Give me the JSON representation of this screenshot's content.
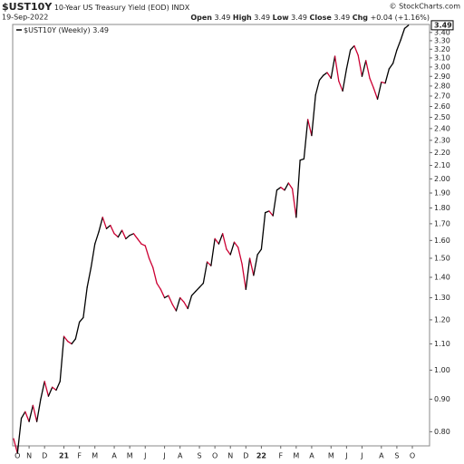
{
  "header": {
    "symbol": "$UST10Y",
    "description": "10-Year US Treasury Yield (EOD)",
    "exchange": "INDX",
    "date": "19-Sep-2022",
    "copyright": "© StockCharts.com",
    "quote": {
      "open_label": "Open",
      "open": 3.49,
      "high_label": "High",
      "high": 3.49,
      "low_label": "Low",
      "low": 3.49,
      "close_label": "Close",
      "close": 3.49,
      "change_label": "Chg",
      "change": "+0.04 (+1.16%)"
    }
  },
  "chart_data": {
    "type": "line",
    "log_scale": true,
    "up_color": "#000000",
    "down_color": "#cc0033",
    "categories": [
      null,
      "O",
      null,
      null,
      "N",
      null,
      null,
      null,
      "D",
      null,
      null,
      null,
      null,
      "21",
      null,
      null,
      null,
      "F",
      null,
      null,
      null,
      "M",
      null,
      null,
      null,
      null,
      "A",
      null,
      null,
      null,
      "M",
      null,
      null,
      null,
      "J",
      null,
      null,
      null,
      null,
      "J",
      null,
      null,
      null,
      "A",
      null,
      null,
      null,
      null,
      "S",
      null,
      null,
      null,
      "O",
      null,
      null,
      null,
      "N",
      null,
      null,
      null,
      "D",
      null,
      null,
      null,
      "22",
      null,
      null,
      null,
      null,
      "F",
      null,
      null,
      null,
      "M",
      null,
      null,
      null,
      "A",
      null,
      null,
      null,
      null,
      "M",
      null,
      null,
      null,
      "J",
      null,
      null,
      null,
      "J",
      null,
      null,
      null,
      null,
      "A",
      null,
      null,
      null,
      "S",
      null,
      null,
      null,
      "O"
    ],
    "series": [
      {
        "name": "$UST10Y (Weekly)",
        "color": "#000000",
        "values": [
          0.78,
          0.74,
          0.84,
          0.86,
          0.83,
          0.88,
          0.83,
          0.9,
          0.96,
          0.91,
          0.94,
          0.93,
          0.96,
          1.13,
          1.11,
          1.1,
          1.12,
          1.19,
          1.21,
          1.35,
          1.45,
          1.58,
          1.65,
          1.74,
          1.67,
          1.69,
          1.64,
          1.62,
          1.66,
          1.61,
          1.63,
          1.64,
          1.61,
          1.58,
          1.57,
          1.5,
          1.45,
          1.37,
          1.34,
          1.3,
          1.31,
          1.27,
          1.24,
          1.3,
          1.28,
          1.25,
          1.31,
          1.33,
          1.35,
          1.37,
          1.48,
          1.46,
          1.61,
          1.58,
          1.64,
          1.55,
          1.52,
          1.59,
          1.56,
          1.47,
          1.34,
          1.5,
          1.41,
          1.52,
          1.55,
          1.77,
          1.78,
          1.75,
          1.92,
          1.94,
          1.92,
          1.97,
          1.93,
          1.74,
          2.14,
          2.15,
          2.48,
          2.34,
          2.71,
          2.86,
          2.91,
          2.94,
          2.88,
          3.12,
          2.85,
          2.75,
          2.98,
          3.19,
          3.24,
          3.13,
          2.9,
          3.07,
          2.88,
          2.78,
          2.67,
          2.84,
          2.83,
          2.98,
          3.04,
          3.19,
          3.31,
          3.45,
          3.49,
          null
        ]
      }
    ],
    "ylim": [
      0.76,
      3.5
    ],
    "yticks": [
      {
        "value": 0.8,
        "label": "0.80"
      },
      {
        "value": 0.9,
        "label": "0.90"
      },
      {
        "value": 1.0,
        "label": "1.00"
      },
      {
        "value": 1.1,
        "label": "1.10"
      },
      {
        "value": 1.2,
        "label": "1.20"
      },
      {
        "value": 1.3,
        "label": "1.30"
      },
      {
        "value": 1.4,
        "label": "1.40"
      },
      {
        "value": 1.5,
        "label": "1.50"
      },
      {
        "value": 1.6,
        "label": "1.60"
      },
      {
        "value": 1.7,
        "label": "1.70"
      },
      {
        "value": 1.8,
        "label": "1.80"
      },
      {
        "value": 1.9,
        "label": "1.90"
      },
      {
        "value": 2.0,
        "label": "2.00"
      },
      {
        "value": 2.1,
        "label": "2.10"
      },
      {
        "value": 2.2,
        "label": "2.20"
      },
      {
        "value": 2.3,
        "label": "2.30"
      },
      {
        "value": 2.4,
        "label": "2.40"
      },
      {
        "value": 2.5,
        "label": "2.50"
      },
      {
        "value": 2.6,
        "label": "2.60"
      },
      {
        "value": 2.7,
        "label": "2.70"
      },
      {
        "value": 2.8,
        "label": "2.80"
      },
      {
        "value": 2.9,
        "label": "2.90"
      },
      {
        "value": 3.0,
        "label": "3.00"
      },
      {
        "value": 3.1,
        "label": "3.10"
      },
      {
        "value": 3.2,
        "label": "3.20"
      },
      {
        "value": 3.3,
        "label": "3.30"
      },
      {
        "value": 3.4,
        "label": "3.40"
      }
    ]
  }
}
